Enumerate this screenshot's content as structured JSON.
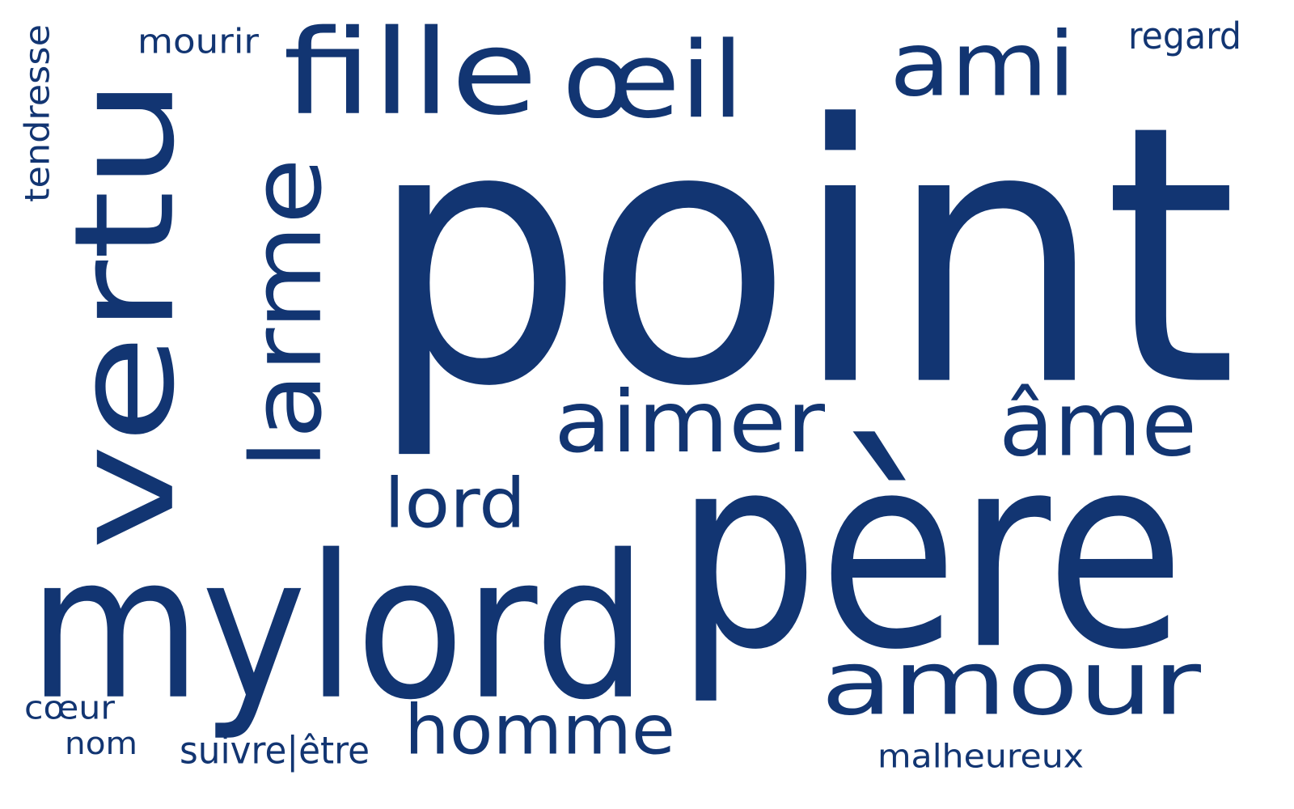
{
  "colors": {
    "word": "#123572",
    "background": "#ffffff"
  },
  "words": [
    {
      "id": "point",
      "text": "point",
      "orientation": "horizontal"
    },
    {
      "id": "pere",
      "text": "père",
      "orientation": "horizontal"
    },
    {
      "id": "mylord",
      "text": "mylord",
      "orientation": "horizontal"
    },
    {
      "id": "vertu",
      "text": "vertu",
      "orientation": "vertical"
    },
    {
      "id": "amour",
      "text": "amour",
      "orientation": "horizontal"
    },
    {
      "id": "fille",
      "text": "fille",
      "orientation": "horizontal"
    },
    {
      "id": "larme",
      "text": "larme",
      "orientation": "vertical"
    },
    {
      "id": "oeil",
      "text": "œil",
      "orientation": "horizontal"
    },
    {
      "id": "ami",
      "text": "ami",
      "orientation": "horizontal"
    },
    {
      "id": "aimer",
      "text": "aimer",
      "orientation": "horizontal"
    },
    {
      "id": "ame",
      "text": "âme",
      "orientation": "horizontal"
    },
    {
      "id": "homme",
      "text": "homme",
      "orientation": "horizontal"
    },
    {
      "id": "lord",
      "text": "lord",
      "orientation": "horizontal"
    },
    {
      "id": "tendresse",
      "text": "tendresse",
      "orientation": "vertical"
    },
    {
      "id": "mourir",
      "text": "mourir",
      "orientation": "horizontal"
    },
    {
      "id": "regard",
      "text": "regard",
      "orientation": "horizontal"
    },
    {
      "id": "coeur",
      "text": "cœur",
      "orientation": "horizontal"
    },
    {
      "id": "nom",
      "text": "nom",
      "orientation": "horizontal"
    },
    {
      "id": "suivre-etre",
      "text": "suivre|être",
      "orientation": "horizontal"
    },
    {
      "id": "malheureux",
      "text": "malheureux",
      "orientation": "horizontal"
    }
  ]
}
